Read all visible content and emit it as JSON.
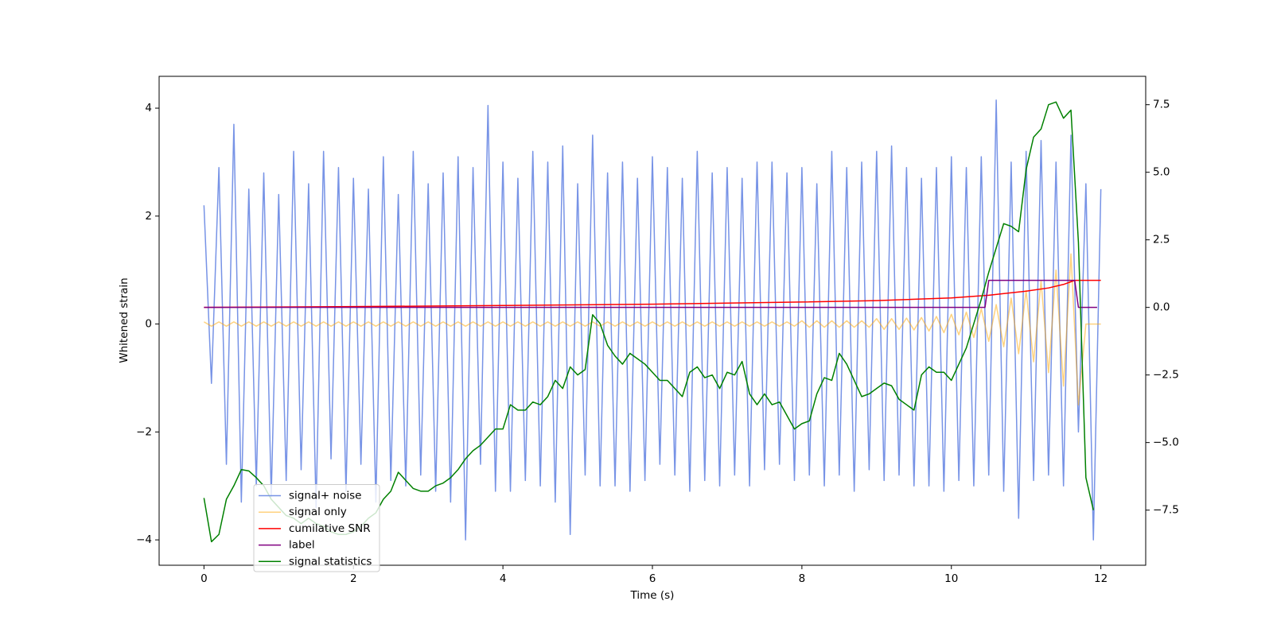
{
  "chart_data": {
    "type": "line",
    "xlabel": "Time (s)",
    "ylabel": "Whitened strain",
    "xlim": [
      -0.6,
      12.6
    ],
    "ylim": [
      -4.47,
      4.59
    ],
    "y2lim": [
      -9.54,
      8.55
    ],
    "xticks": [
      0,
      2,
      4,
      6,
      8,
      10,
      12
    ],
    "yticks": [
      {
        "value": -4,
        "label": "−4"
      },
      {
        "value": -2,
        "label": "−2"
      },
      0,
      2,
      4
    ],
    "y2ticks": [
      {
        "value": -7.5,
        "label": "−7.5"
      },
      {
        "value": -5,
        "label": "−5.0"
      },
      {
        "value": -2.5,
        "label": "−2.5"
      },
      {
        "value": 0,
        "label": "0.0"
      },
      {
        "value": 2.5,
        "label": "2.5"
      },
      {
        "value": 5,
        "label": "5.0"
      },
      {
        "value": 7.5,
        "label": "7.5"
      }
    ],
    "legend": "lower left",
    "x": [
      0,
      0.1,
      0.2,
      0.3,
      0.4,
      0.5,
      0.6,
      0.7,
      0.8,
      0.9,
      1,
      1.1,
      1.2,
      1.3,
      1.4,
      1.5,
      1.6,
      1.7,
      1.8,
      1.9,
      2,
      2.1,
      2.2,
      2.3,
      2.4,
      2.5,
      2.6,
      2.7,
      2.8,
      2.9,
      3,
      3.1,
      3.2,
      3.3,
      3.4,
      3.5,
      3.6,
      3.7,
      3.8,
      3.9,
      4,
      4.1,
      4.2,
      4.3,
      4.4,
      4.5,
      4.6,
      4.7,
      4.8,
      4.9,
      5,
      5.1,
      5.2,
      5.3,
      5.4,
      5.5,
      5.6,
      5.7,
      5.8,
      5.9,
      6,
      6.1,
      6.2,
      6.3,
      6.4,
      6.5,
      6.6,
      6.7,
      6.8,
      6.9,
      7,
      7.1,
      7.2,
      7.3,
      7.4,
      7.5,
      7.6,
      7.7,
      7.8,
      7.9,
      8,
      8.1,
      8.2,
      8.3,
      8.4,
      8.5,
      8.6,
      8.7,
      8.8,
      8.9,
      9,
      9.1,
      9.2,
      9.3,
      9.4,
      9.5,
      9.6,
      9.7,
      9.8,
      9.9,
      10,
      10.1,
      10.2,
      10.3,
      10.4,
      10.5,
      10.6,
      10.7,
      10.8,
      10.9,
      11,
      11.1,
      11.2,
      11.3,
      11.4,
      11.5,
      11.6,
      11.7,
      11.8,
      11.9,
      12
    ],
    "series": [
      {
        "name": "signal+ noise",
        "color": "#7793e6",
        "values": [
          2.2,
          -1.1,
          2.9,
          -2.6,
          3.7,
          -3.3,
          2.5,
          -3.0,
          2.8,
          -3.2,
          2.4,
          -2.9,
          3.2,
          -2.7,
          2.6,
          -3.4,
          3.2,
          -2.5,
          2.9,
          -3.1,
          2.7,
          -2.6,
          2.5,
          -3.3,
          3.1,
          -2.9,
          2.4,
          -3.0,
          3.2,
          -2.8,
          2.6,
          -3.1,
          2.8,
          -3.3,
          3.1,
          -4.0,
          2.9,
          -2.6,
          4.05,
          -3.1,
          3.0,
          -3.1,
          2.7,
          -2.9,
          3.2,
          -3.0,
          3.0,
          -3.3,
          3.3,
          -3.9,
          2.6,
          -2.8,
          3.5,
          -3.0,
          2.8,
          -3.0,
          3.0,
          -3.1,
          2.7,
          -2.9,
          3.1,
          -2.6,
          2.9,
          -2.8,
          2.7,
          -3.1,
          3.2,
          -2.9,
          2.8,
          -3.0,
          2.9,
          -2.8,
          2.7,
          -3.0,
          3.0,
          -2.7,
          3.0,
          -2.6,
          2.8,
          -2.9,
          2.9,
          -2.8,
          2.6,
          -3.0,
          3.2,
          -2.8,
          2.9,
          -3.1,
          3.0,
          -2.7,
          3.2,
          -2.9,
          3.3,
          -2.8,
          2.9,
          -3.0,
          2.7,
          -3.0,
          2.9,
          -3.1,
          3.1,
          -2.9,
          2.9,
          -3.0,
          3.1,
          -2.8,
          4.15,
          -3.1,
          3.0,
          -3.6,
          3.2,
          -2.9,
          3.4,
          -2.8,
          3.0,
          -3.0,
          3.5,
          -2.0,
          2.6,
          -4.0,
          2.5
        ]
      },
      {
        "name": "signal only",
        "color": "#ffa500",
        "alpha": 0.5,
        "values": [
          0.04,
          -0.04,
          0.04,
          -0.04,
          0.04,
          -0.04,
          0.04,
          -0.04,
          0.04,
          -0.04,
          0.04,
          -0.04,
          0.04,
          -0.04,
          0.04,
          -0.04,
          0.04,
          -0.04,
          0.04,
          -0.04,
          0.04,
          -0.04,
          0.04,
          -0.04,
          0.04,
          -0.04,
          0.04,
          -0.04,
          0.04,
          -0.04,
          0.04,
          -0.04,
          0.04,
          -0.04,
          0.04,
          -0.04,
          0.04,
          -0.04,
          0.04,
          -0.04,
          0.04,
          -0.04,
          0.04,
          -0.04,
          0.04,
          -0.04,
          0.04,
          -0.04,
          0.04,
          -0.04,
          0.04,
          -0.04,
          0.04,
          -0.04,
          0.04,
          -0.04,
          0.04,
          -0.04,
          0.04,
          -0.04,
          0.04,
          -0.04,
          0.04,
          -0.04,
          0.04,
          -0.04,
          0.04,
          -0.04,
          0.04,
          -0.04,
          0.04,
          -0.04,
          0.04,
          -0.04,
          0.04,
          -0.04,
          0.04,
          -0.04,
          0.04,
          -0.04,
          0.06,
          -0.06,
          0.06,
          -0.06,
          0.06,
          -0.06,
          0.06,
          -0.06,
          0.06,
          -0.06,
          0.1,
          -0.1,
          0.1,
          -0.1,
          0.11,
          -0.11,
          0.12,
          -0.13,
          0.14,
          -0.16,
          0.18,
          -0.2,
          0.22,
          -0.25,
          0.28,
          -0.32,
          0.36,
          -0.42,
          0.48,
          -0.55,
          0.62,
          -0.7,
          0.8,
          -0.9,
          1.0,
          -1.15,
          1.3,
          -1.5,
          0,
          0,
          0
        ]
      },
      {
        "name": "cumilative SNR",
        "color": "red",
        "axis": "y2",
        "x": [
          0,
          2,
          4,
          6,
          8,
          9,
          10,
          10.5,
          11,
          11.3,
          11.5,
          11.6,
          11.65,
          11.7,
          12
        ],
        "values": [
          0,
          0.03,
          0.07,
          0.12,
          0.2,
          0.25,
          0.35,
          0.45,
          0.6,
          0.72,
          0.85,
          0.95,
          1.0,
          1.0,
          1.0
        ]
      },
      {
        "name": "label",
        "color": "purple",
        "axis": "y2",
        "x": [
          0,
          10.45,
          10.5,
          11.65,
          11.7,
          11.95
        ],
        "values": [
          0,
          0,
          1,
          1,
          0,
          0
        ]
      },
      {
        "name": "signal statistics",
        "color": "green",
        "axis": "y2",
        "values": [
          -7.05,
          -8.67,
          -8.4,
          -7.1,
          -6.6,
          -6.0,
          -6.05,
          -6.3,
          -6.6,
          -7.1,
          -7.4,
          -7.7,
          -7.8,
          -8.0,
          -7.8,
          -8.0,
          -8.1,
          -8.3,
          -8.4,
          -8.4,
          -8.3,
          -8.1,
          -7.8,
          -7.6,
          -7.1,
          -6.8,
          -6.1,
          -6.4,
          -6.7,
          -6.8,
          -6.8,
          -6.6,
          -6.5,
          -6.3,
          -6.0,
          -5.6,
          -5.3,
          -5.1,
          -4.8,
          -4.5,
          -4.5,
          -3.6,
          -3.8,
          -3.8,
          -3.5,
          -3.6,
          -3.3,
          -2.7,
          -3.0,
          -2.2,
          -2.5,
          -2.3,
          -0.27,
          -0.6,
          -1.4,
          -1.8,
          -2.1,
          -1.7,
          -1.9,
          -2.1,
          -2.4,
          -2.7,
          -2.7,
          -3.0,
          -3.3,
          -2.4,
          -2.2,
          -2.6,
          -2.5,
          -3.0,
          -2.4,
          -2.5,
          -2.0,
          -3.2,
          -3.6,
          -3.2,
          -3.6,
          -3.5,
          -4.0,
          -4.5,
          -4.3,
          -4.2,
          -3.2,
          -2.6,
          -2.7,
          -1.7,
          -2.1,
          -2.7,
          -3.3,
          -3.2,
          -3.0,
          -2.8,
          -2.9,
          -3.4,
          -3.6,
          -3.8,
          -2.5,
          -2.2,
          -2.4,
          -2.4,
          -2.7,
          -2.1,
          -1.5,
          -0.6,
          0.3,
          1.3,
          2.2,
          3.1,
          3.0,
          2.8,
          5.1,
          6.3,
          6.6,
          7.5,
          7.6,
          7.0,
          7.3,
          2.4,
          -6.3,
          -7.5,
          null
        ]
      }
    ]
  }
}
